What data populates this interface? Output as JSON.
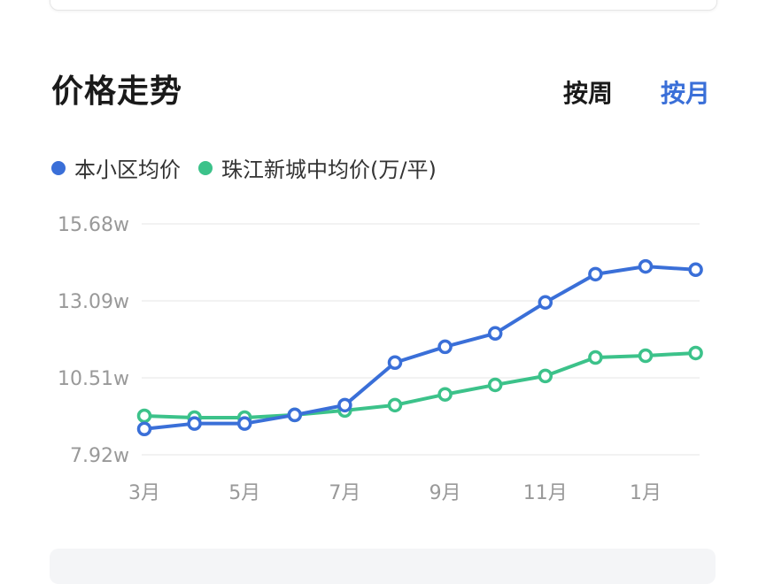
{
  "header": {
    "title": "价格走势",
    "tabs": [
      {
        "label": "按周",
        "active": false
      },
      {
        "label": "按月",
        "active": true
      }
    ]
  },
  "colors": {
    "accent": "#3a6fd8",
    "series1": "#3a6fd8",
    "series2": "#3cc28a"
  },
  "chart_data": {
    "type": "line",
    "legend_suffix": "(万/平)",
    "legend_placement": "top-left",
    "grid": true,
    "categories": [
      "3月",
      "4月",
      "5月",
      "6月",
      "7月",
      "8月",
      "9月",
      "10月",
      "11月",
      "12月",
      "1月",
      "2月"
    ],
    "x_tick_labels": [
      "3月",
      "5月",
      "7月",
      "9月",
      "11月",
      "1月"
    ],
    "y_ticks": [
      "15.68w",
      "13.09w",
      "10.51w",
      "7.92w"
    ],
    "ylim": [
      7.92,
      15.68
    ],
    "series": [
      {
        "name": "本小区均价",
        "color": "#3a6fd8",
        "values": [
          8.79,
          8.97,
          8.97,
          9.26,
          9.59,
          11.02,
          11.55,
          12.0,
          13.04,
          13.99,
          14.25,
          14.14
        ]
      },
      {
        "name": "珠江新城中均价",
        "color": "#3cc28a",
        "values": [
          9.23,
          9.17,
          9.17,
          9.26,
          9.41,
          9.59,
          9.95,
          10.27,
          10.57,
          11.19,
          11.25,
          11.34
        ]
      }
    ]
  }
}
